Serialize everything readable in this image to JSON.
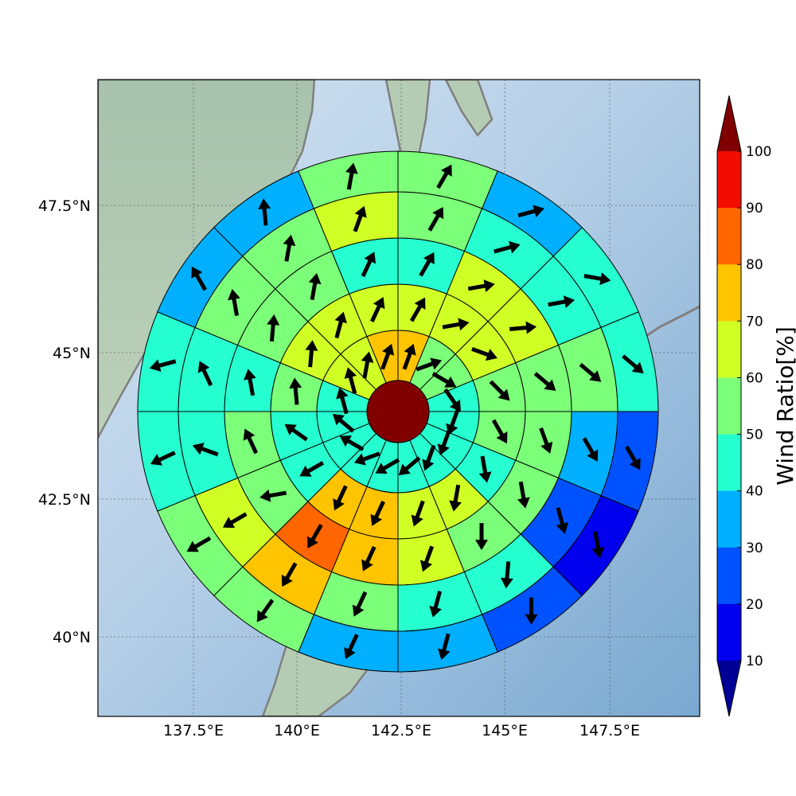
{
  "chart_data": {
    "type": "heatmap",
    "subtype": "polar sector wind ratio map with wind direction arrows",
    "map": {
      "lon_range": [
        135.2,
        149.6
      ],
      "lat_range": [
        38.5,
        49.8
      ],
      "gridlines": true,
      "x_ticks": [
        "137.5°E",
        "140°E",
        "142.5°E",
        "145°E",
        "147.5°E"
      ],
      "x_tick_values": [
        137.5,
        140,
        142.5,
        145,
        147.5
      ],
      "y_ticks": [
        "47.5°N",
        "45°N",
        "42.5°N",
        "40°N"
      ],
      "y_tick_values": [
        47.5,
        45,
        42.5,
        40
      ]
    },
    "colorbar": {
      "label": "Wind Ratio[%]",
      "ticks": [
        "10",
        "20",
        "30",
        "40",
        "50",
        "60",
        "70",
        "80",
        "90",
        "100"
      ],
      "levels": [
        10,
        20,
        30,
        40,
        50,
        60,
        70,
        80,
        90,
        100
      ],
      "colors": [
        "#000096",
        "#0000ef",
        "#0052ff",
        "#00b0ff",
        "#26ffd0",
        "#7cff79",
        "#d0ff26",
        "#ffc400",
        "#ff6600",
        "#f20d00",
        "#800000"
      ],
      "extend": "both"
    },
    "center_value_color": "#800000",
    "sectors_per_ring": 16,
    "sector_order": "clockwise starting at north",
    "rings": [
      {
        "ring": 1,
        "values": [
          75,
          55,
          55,
          45,
          45,
          45,
          45,
          45,
          45,
          45,
          45,
          45,
          45,
          65,
          65,
          75
        ],
        "arrow_dir_deg": [
          20,
          70,
          120,
          145,
          200,
          200,
          200,
          230,
          240,
          250,
          300,
          310,
          345,
          345,
          10,
          20
        ]
      },
      {
        "ring": 2,
        "values": [
          65,
          65,
          65,
          55,
          55,
          45,
          65,
          65,
          75,
          75,
          45,
          45,
          55,
          65,
          65,
          65
        ],
        "arrow_dir_deg": [
          30,
          80,
          110,
          135,
          150,
          170,
          190,
          200,
          205,
          205,
          240,
          305,
          355,
          5,
          15,
          25
        ]
      },
      {
        "ring": 3,
        "values": [
          45,
          65,
          65,
          55,
          55,
          55,
          55,
          65,
          75,
          85,
          55,
          55,
          45,
          55,
          55,
          45
        ],
        "arrow_dir_deg": [
          30,
          80,
          85,
          130,
          160,
          170,
          180,
          200,
          205,
          210,
          260,
          335,
          350,
          5,
          10,
          25
        ]
      },
      {
        "ring": 4,
        "values": [
          55,
          45,
          45,
          55,
          35,
          25,
          45,
          45,
          55,
          75,
          65,
          45,
          45,
          55,
          55,
          65
        ],
        "arrow_dir_deg": [
          30,
          75,
          80,
          130,
          150,
          165,
          185,
          195,
          205,
          210,
          240,
          290,
          335,
          350,
          10,
          20
        ]
      },
      {
        "ring": 5,
        "values": [
          55,
          35,
          45,
          45,
          25,
          15,
          25,
          35,
          35,
          55,
          55,
          45,
          45,
          35,
          35,
          55
        ],
        "arrow_dir_deg": [
          30,
          75,
          100,
          130,
          150,
          170,
          180,
          195,
          205,
          215,
          240,
          245,
          255,
          330,
          355,
          10
        ]
      }
    ]
  }
}
